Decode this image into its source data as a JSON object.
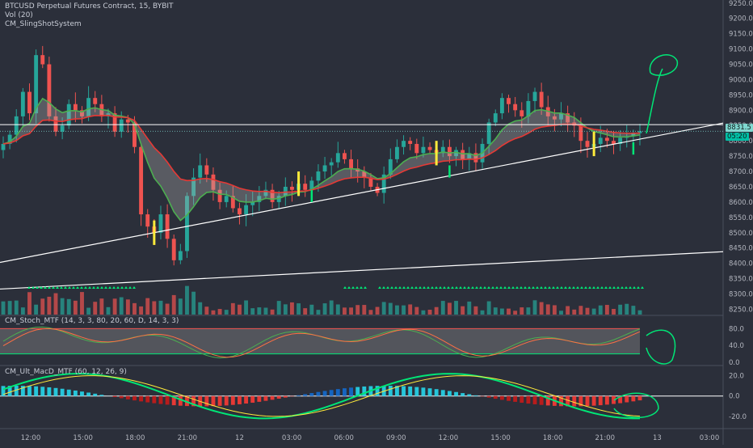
{
  "legend": {
    "symbol": "BTCUSD Perpetual Futures Contract, 15, BYBIT",
    "volume": "Vol (20)",
    "indicator1": "CM_SlingShotSystem",
    "stoch": "CM_Stoch_MTF (14, 3, 3, 80, 20, 60, D, 14, 3, 3)",
    "macd": "CM_Ult_MacD_MTF (60, 12, 26, 9)"
  },
  "colors": {
    "background": "#2b2f3a",
    "bull": "#26a69a",
    "bear": "#ef5350",
    "signal_yellow": "#ffeb3b",
    "signal_green": "#00e676",
    "ema_green": "#4caf50",
    "ema_red": "#e53935",
    "price_tag": "#7fd8d0",
    "time_tag": "#00bfa5"
  },
  "chart_data": [
    {
      "type": "candlestick",
      "panel": "price",
      "y_ticks": [
        "9250.0",
        "9200.0",
        "9150.0",
        "9100.0",
        "9050.0",
        "9000.0",
        "8950.0",
        "8900.0",
        "8850.0",
        "8800.0",
        "8750.0",
        "8700.0",
        "8650.0",
        "8600.0",
        "8550.0",
        "8500.0",
        "8450.0",
        "8400.0",
        "8350.0",
        "8300.0",
        "8250.0"
      ],
      "ylim": [
        8230,
        9260
      ],
      "current_price": "8831.5",
      "countdown": "05:20",
      "x_ticks": [
        "12:00",
        "15:00",
        "18:00",
        "21:00",
        "12",
        "03:00",
        "06:00",
        "09:00",
        "12:00",
        "15:00",
        "18:00",
        "21:00",
        "13",
        "03:00"
      ],
      "closes": [
        8790,
        8820,
        8880,
        8960,
        8890,
        9080,
        9050,
        8880,
        8830,
        8850,
        8920,
        8900,
        8880,
        8940,
        8920,
        8880,
        8890,
        8830,
        8870,
        8860,
        8780,
        8560,
        8520,
        8500,
        8560,
        8480,
        8410,
        8440,
        8620,
        8680,
        8720,
        8690,
        8640,
        8600,
        8620,
        8580,
        8560,
        8590,
        8600,
        8620,
        8640,
        8600,
        8620,
        8650,
        8640,
        8660,
        8640,
        8670,
        8700,
        8720,
        8730,
        8760,
        8740,
        8710,
        8700,
        8680,
        8650,
        8630,
        8690,
        8740,
        8780,
        8800,
        8790,
        8760,
        8780,
        8770,
        8760,
        8780,
        8750,
        8770,
        8740,
        8760,
        8730,
        8790,
        8860,
        8890,
        8940,
        8920,
        8900,
        8880,
        8930,
        8960,
        8910,
        8880,
        8870,
        8890,
        8860,
        8850,
        8800,
        8780,
        8790,
        8810,
        8800,
        8790,
        8810,
        8815,
        8825,
        8831.5
      ]
    },
    {
      "type": "bar",
      "panel": "volume",
      "name": "Vol (20)"
    },
    {
      "type": "line",
      "panel": "stochastic",
      "title": "CM_Stoch_MTF (14, 3, 3, 80, 20, 60, D, 14, 3, 3)",
      "y_ticks": [
        "80.0",
        "40.0",
        "0.0"
      ],
      "ylim": [
        0,
        100
      ],
      "overbought": 80,
      "oversold": 20
    },
    {
      "type": "bar",
      "panel": "macd",
      "title": "CM_Ult_MacD_MTF (60, 12, 26, 9)",
      "y_ticks": [
        "20.0",
        "0.0",
        "-20.0"
      ],
      "ylim": [
        -32,
        30
      ]
    }
  ]
}
